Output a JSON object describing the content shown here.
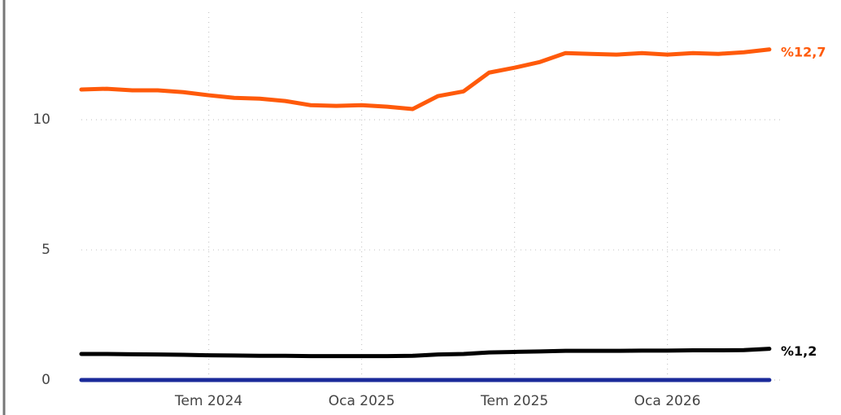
{
  "chart_data": {
    "type": "line",
    "categories": [
      null,
      null,
      null,
      null,
      null,
      "Tem 2024",
      null,
      null,
      null,
      null,
      null,
      "Oca 2025",
      null,
      null,
      null,
      null,
      null,
      "Tem 2025",
      null,
      null,
      null,
      null,
      null,
      "Oca 2026",
      null,
      null,
      null,
      null
    ],
    "series": [
      {
        "color": "#ff5a0a",
        "values": [
          11.16,
          11.19,
          11.13,
          11.13,
          11.06,
          10.94,
          10.84,
          10.81,
          10.72,
          10.56,
          10.53,
          10.56,
          10.5,
          10.41,
          10.91,
          11.09,
          11.81,
          12.0,
          12.22,
          12.56,
          12.53,
          12.5,
          12.56,
          12.5,
          12.56,
          12.53,
          12.59,
          12.7
        ],
        "value_labels": [
          null,
          null,
          null,
          null,
          null,
          null,
          null,
          null,
          null,
          null,
          null,
          null,
          null,
          null,
          null,
          null,
          null,
          null,
          null,
          null,
          null,
          null,
          null,
          null,
          null,
          null,
          null,
          "%12,7"
        ]
      },
      {
        "color": "#000000",
        "values": [
          1.0,
          1.0,
          0.99,
          0.98,
          0.97,
          0.95,
          0.94,
          0.93,
          0.93,
          0.92,
          0.92,
          0.92,
          0.92,
          0.93,
          0.98,
          1.0,
          1.06,
          1.08,
          1.1,
          1.12,
          1.12,
          1.12,
          1.13,
          1.13,
          1.14,
          1.14,
          1.15,
          1.2
        ],
        "value_labels": [
          null,
          null,
          null,
          null,
          null,
          null,
          null,
          null,
          null,
          null,
          null,
          null,
          null,
          null,
          null,
          null,
          null,
          null,
          null,
          null,
          null,
          null,
          null,
          null,
          null,
          null,
          null,
          "%1,2"
        ]
      },
      {
        "color": "#1a2a9a",
        "values": [
          0,
          0,
          0,
          0,
          0,
          0,
          0,
          0,
          0,
          0,
          0,
          0,
          0,
          0,
          0,
          0,
          0,
          0,
          0,
          0,
          0,
          0,
          0,
          0,
          0,
          0,
          0,
          0
        ]
      }
    ],
    "ylim": [
      0,
      14.6
    ],
    "yticks": [
      0,
      5,
      10
    ],
    "grid": true
  }
}
